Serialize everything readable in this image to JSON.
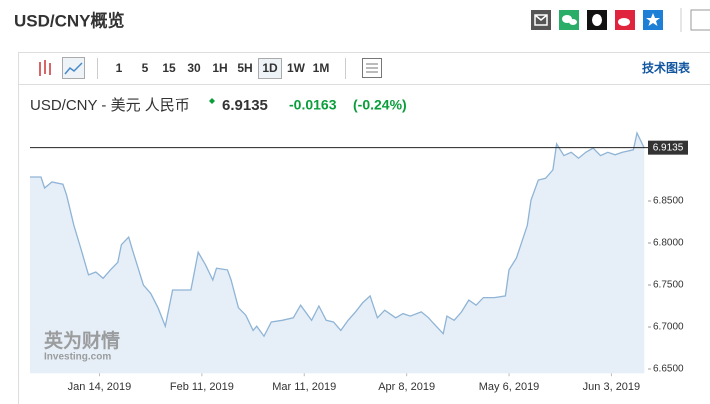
{
  "header": {
    "title": "USD/CNY概览"
  },
  "toolbar": {
    "intervals": [
      "1",
      "5",
      "15",
      "30",
      "1H",
      "5H",
      "1D",
      "1W",
      "1M"
    ],
    "selected": "1D",
    "link": "技术图表"
  },
  "quote": {
    "name": "USD/CNY - 美元 人民币",
    "change": "-0.0163",
    "change_pct": "(-0.24%)"
  },
  "watermark": {
    "brand": "英为财情",
    "site": "Investing.com"
  },
  "chart_data": {
    "type": "area",
    "last_value": 6.9135,
    "x": [
      "2018-12-26",
      "2018-12-29",
      "2018-12-30",
      "2019-01-01",
      "2019-01-04",
      "2019-01-05",
      "2019-01-07",
      "2019-01-09",
      "2019-01-11",
      "2019-01-13",
      "2019-01-15",
      "2019-01-17",
      "2019-01-19",
      "2019-01-20",
      "2019-01-22",
      "2019-01-23",
      "2019-01-26",
      "2019-01-28",
      "2019-01-30",
      "2019-02-01",
      "2019-02-03",
      "2019-02-05",
      "2019-02-08",
      "2019-02-10",
      "2019-02-12",
      "2019-02-14",
      "2019-02-15",
      "2019-02-18",
      "2019-02-19",
      "2019-02-21",
      "2019-02-23",
      "2019-02-25",
      "2019-02-26",
      "2019-02-28",
      "2019-03-02",
      "2019-03-05",
      "2019-03-08",
      "2019-03-10",
      "2019-03-13",
      "2019-03-15",
      "2019-03-17",
      "2019-03-19",
      "2019-03-21",
      "2019-03-23",
      "2019-03-25",
      "2019-03-27",
      "2019-03-29",
      "2019-03-31",
      "2019-04-02",
      "2019-04-05",
      "2019-04-07",
      "2019-04-09",
      "2019-04-12",
      "2019-04-14",
      "2019-04-15",
      "2019-04-18",
      "2019-04-19",
      "2019-04-21",
      "2019-04-23",
      "2019-04-25",
      "2019-04-27",
      "2019-04-29",
      "2019-05-02",
      "2019-05-05",
      "2019-05-06",
      "2019-05-08",
      "2019-05-11",
      "2019-05-12",
      "2019-05-14",
      "2019-05-16",
      "2019-05-18",
      "2019-05-19",
      "2019-05-21",
      "2019-05-23",
      "2019-05-25",
      "2019-05-27",
      "2019-05-29",
      "2019-05-31",
      "2019-06-02",
      "2019-06-04",
      "2019-06-06",
      "2019-06-09",
      "2019-06-10",
      "2019-06-12"
    ],
    "series": [
      {
        "name": "USD/CNY",
        "color": "#8fb4d6",
        "fill": "#e6eff7",
        "values": [
          6.8786,
          6.8786,
          6.8655,
          6.8726,
          6.87,
          6.857,
          6.821,
          6.792,
          6.762,
          6.7655,
          6.758,
          6.768,
          6.777,
          6.798,
          6.807,
          6.792,
          6.75,
          6.74,
          6.723,
          6.701,
          6.744,
          6.744,
          6.744,
          6.789,
          6.774,
          6.756,
          6.77,
          6.768,
          6.756,
          6.723,
          6.714,
          6.696,
          6.701,
          6.689,
          6.706,
          6.708,
          6.711,
          6.726,
          6.708,
          6.725,
          6.708,
          6.706,
          6.696,
          6.708,
          6.718,
          6.729,
          6.737,
          6.711,
          6.72,
          6.711,
          6.716,
          6.713,
          6.718,
          6.711,
          6.706,
          6.692,
          6.713,
          6.708,
          6.718,
          6.732,
          6.726,
          6.735,
          6.735,
          6.737,
          6.768,
          6.782,
          6.821,
          6.851,
          6.875,
          6.877,
          6.887,
          6.918,
          6.904,
          6.908,
          6.901,
          6.908,
          6.913,
          6.904,
          6.908,
          6.905,
          6.908,
          6.911,
          6.931,
          6.913
        ]
      }
    ],
    "xlim": [
      "2018-12-26",
      "2019-06-13"
    ],
    "xticks": [
      {
        "value": "2019-01-14",
        "label": "Jan 14, 2019"
      },
      {
        "value": "2019-02-11",
        "label": "Feb 11, 2019"
      },
      {
        "value": "2019-03-11",
        "label": "Mar 11, 2019"
      },
      {
        "value": "2019-04-08",
        "label": "Apr 8, 2019"
      },
      {
        "value": "2019-05-06",
        "label": "May 6, 2019"
      },
      {
        "value": "2019-06-03",
        "label": "Jun 3, 2019"
      }
    ],
    "ylim": [
      6.645,
      6.94
    ],
    "yticks": [
      {
        "value": 6.65,
        "label": "6.6500"
      },
      {
        "value": 6.7,
        "label": "6.7000"
      },
      {
        "value": 6.75,
        "label": "6.7500"
      },
      {
        "value": 6.8,
        "label": "6.8000"
      },
      {
        "value": 6.85,
        "label": "6.8500"
      }
    ]
  }
}
